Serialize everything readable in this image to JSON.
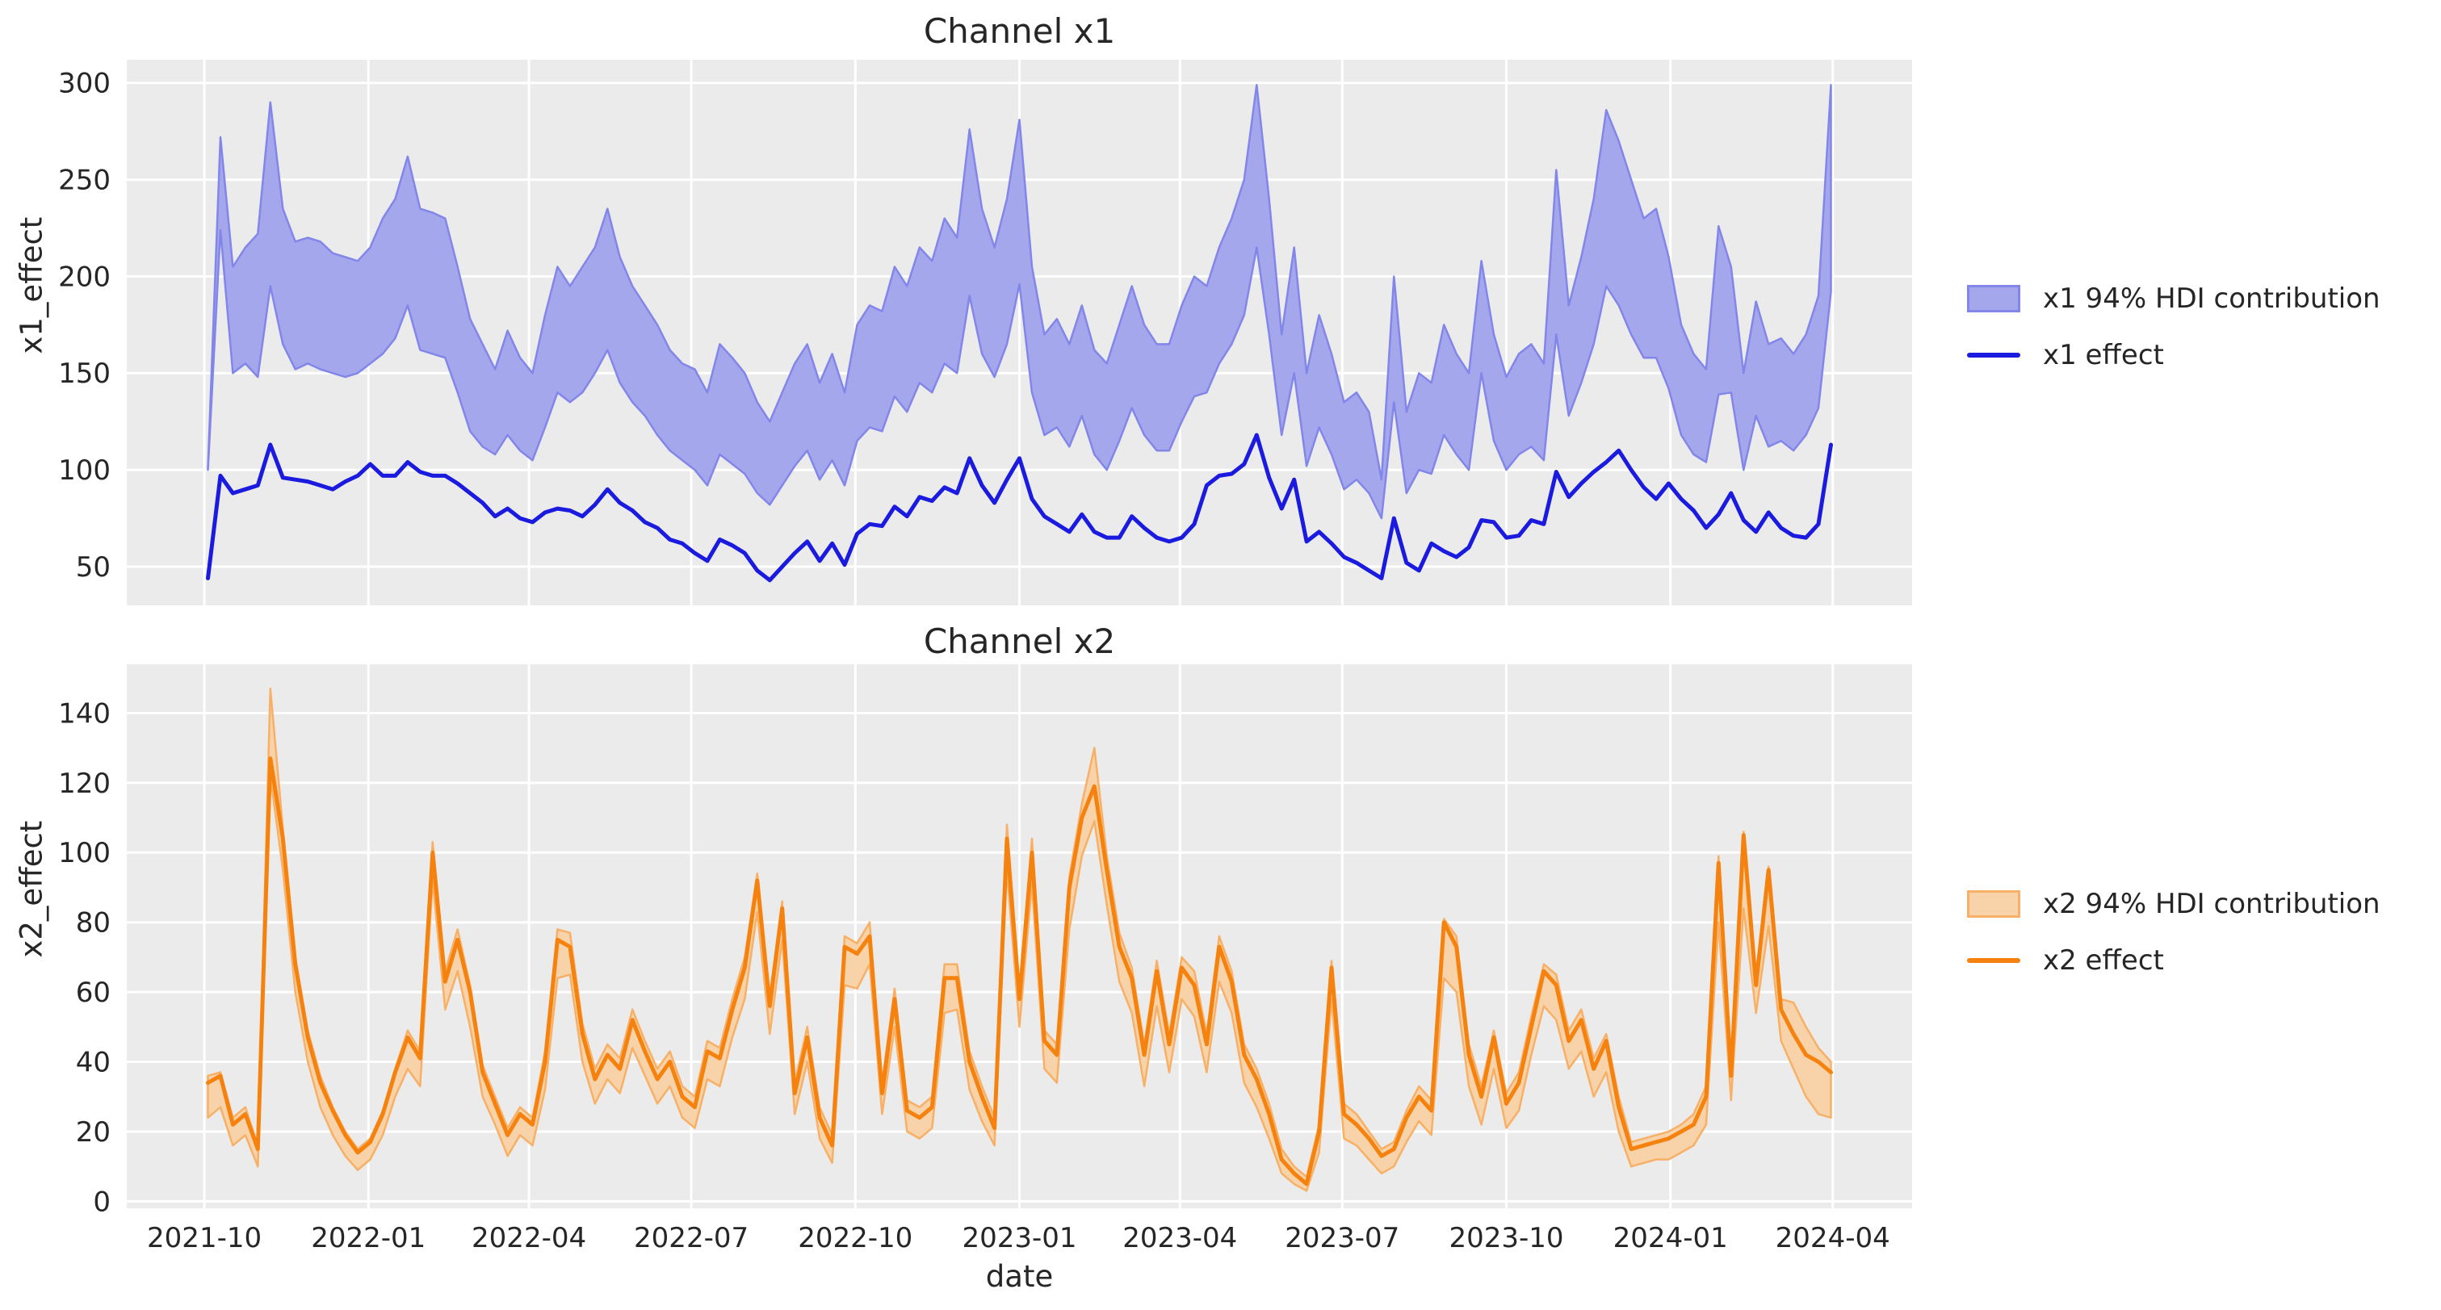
{
  "figure": {
    "background": "#ffffff",
    "axes_background": "#ebebeb",
    "grid_color": "#ffffff",
    "text_color": "#262626"
  },
  "x_axis": {
    "label": "date",
    "tick_dates": [
      "2021-10-01",
      "2022-01-01",
      "2022-04-01",
      "2022-07-01",
      "2022-10-01",
      "2023-01-01",
      "2023-04-01",
      "2023-07-01",
      "2023-10-01",
      "2024-01-01",
      "2024-04-01"
    ],
    "tick_labels": [
      "2021-10",
      "2022-01",
      "2022-04",
      "2022-07",
      "2022-10",
      "2023-01",
      "2023-04",
      "2023-07",
      "2023-10",
      "2024-01",
      "2024-04"
    ]
  },
  "chart_data": [
    {
      "type": "area",
      "title": "Channel x1",
      "ylabel": "x1_effect",
      "xlabel": "",
      "ylim": [
        30,
        312
      ],
      "yticks": [
        50,
        100,
        150,
        200,
        250,
        300
      ],
      "grid": true,
      "legend_position": "center-right-outside",
      "x_start": "2021-10-03",
      "x_step_days": 7,
      "n_points": 131,
      "series": [
        {
          "name": "x1 94% HDI contribution",
          "kind": "band",
          "fill_color": "#a5a7ec",
          "edge_color": "#8286e9",
          "lower": [
            100,
            224,
            150,
            155,
            148,
            195,
            165,
            152,
            155,
            152,
            150,
            148,
            150,
            155,
            160,
            168,
            185,
            162,
            160,
            158,
            140,
            120,
            112,
            108,
            118,
            110,
            105,
            122,
            140,
            135,
            140,
            150,
            162,
            145,
            135,
            128,
            118,
            110,
            105,
            100,
            92,
            108,
            103,
            98,
            88,
            82,
            92,
            102,
            110,
            95,
            105,
            92,
            115,
            122,
            120,
            138,
            130,
            145,
            140,
            155,
            150,
            190,
            160,
            148,
            165,
            196,
            140,
            118,
            122,
            112,
            128,
            108,
            100,
            115,
            132,
            118,
            110,
            110,
            125,
            138,
            140,
            155,
            165,
            180,
            215,
            170,
            118,
            150,
            102,
            122,
            108,
            90,
            95,
            88,
            75,
            135,
            88,
            100,
            98,
            118,
            108,
            100,
            150,
            115,
            100,
            108,
            112,
            105,
            170,
            128,
            145,
            165,
            195,
            185,
            170,
            158,
            158,
            142,
            118,
            108,
            104,
            139,
            140,
            100,
            128,
            112,
            115,
            110,
            118,
            132,
            192
          ],
          "upper": [
            101,
            272,
            205,
            215,
            222,
            290,
            235,
            218,
            220,
            218,
            212,
            210,
            208,
            215,
            230,
            240,
            262,
            235,
            233,
            230,
            205,
            178,
            165,
            152,
            172,
            158,
            150,
            180,
            205,
            195,
            205,
            215,
            235,
            210,
            195,
            185,
            175,
            162,
            155,
            152,
            140,
            165,
            158,
            150,
            135,
            125,
            140,
            155,
            165,
            145,
            160,
            140,
            175,
            185,
            182,
            205,
            195,
            215,
            208,
            230,
            220,
            276,
            235,
            215,
            240,
            281,
            205,
            170,
            178,
            165,
            185,
            162,
            155,
            175,
            195,
            175,
            165,
            165,
            185,
            200,
            195,
            215,
            230,
            250,
            299,
            240,
            170,
            215,
            150,
            180,
            160,
            135,
            140,
            130,
            95,
            200,
            130,
            150,
            145,
            175,
            160,
            150,
            208,
            170,
            148,
            160,
            165,
            155,
            255,
            185,
            210,
            240,
            286,
            270,
            250,
            230,
            235,
            210,
            175,
            160,
            152,
            226,
            205,
            150,
            187,
            165,
            168,
            160,
            170,
            190,
            299
          ]
        },
        {
          "name": "x1 effect",
          "kind": "line",
          "color": "#1b1be0",
          "values": [
            44,
            97,
            88,
            90,
            92,
            113,
            96,
            95,
            94,
            92,
            90,
            94,
            97,
            103,
            97,
            97,
            104,
            99,
            97,
            97,
            93,
            88,
            83,
            76,
            80,
            75,
            73,
            78,
            80,
            79,
            76,
            82,
            90,
            83,
            79,
            73,
            70,
            64,
            62,
            57,
            53,
            64,
            61,
            57,
            48,
            43,
            50,
            57,
            63,
            53,
            62,
            51,
            67,
            72,
            71,
            81,
            76,
            86,
            84,
            91,
            88,
            106,
            92,
            83,
            95,
            106,
            85,
            76,
            72,
            68,
            77,
            68,
            65,
            65,
            76,
            70,
            65,
            63,
            65,
            72,
            92,
            97,
            98,
            103,
            118,
            96,
            80,
            95,
            63,
            68,
            62,
            55,
            52,
            48,
            44,
            75,
            52,
            48,
            62,
            58,
            55,
            60,
            74,
            73,
            65,
            66,
            74,
            72,
            99,
            86,
            93,
            99,
            104,
            110,
            100,
            91,
            85,
            93,
            85,
            79,
            70,
            77,
            88,
            74,
            68,
            78,
            70,
            66,
            65,
            72,
            113
          ]
        }
      ]
    },
    {
      "type": "area",
      "title": "Channel x2",
      "ylabel": "x2_effect",
      "xlabel": "date",
      "ylim": [
        -2,
        154
      ],
      "yticks": [
        0,
        20,
        40,
        60,
        80,
        100,
        120,
        140
      ],
      "grid": true,
      "legend_position": "center-right-outside",
      "x_start": "2021-10-03",
      "x_step_days": 7,
      "n_points": 131,
      "series": [
        {
          "name": "x2 94% HDI contribution",
          "kind": "band",
          "fill_color": "#f8d2a8",
          "edge_color": "#f7b066",
          "lower": [
            24,
            27,
            16,
            19,
            10,
            122,
            95,
            60,
            40,
            27,
            19,
            13,
            9,
            12,
            19,
            30,
            38,
            33,
            92,
            55,
            66,
            50,
            30,
            22,
            13,
            19,
            16,
            32,
            64,
            65,
            40,
            28,
            35,
            31,
            44,
            36,
            28,
            33,
            24,
            21,
            35,
            33,
            47,
            58,
            83,
            48,
            75,
            25,
            40,
            18,
            11,
            62,
            61,
            68,
            25,
            50,
            20,
            18,
            21,
            54,
            55,
            32,
            23,
            16,
            95,
            50,
            91,
            38,
            34,
            78,
            99,
            109,
            85,
            63,
            54,
            33,
            56,
            37,
            58,
            53,
            37,
            63,
            54,
            34,
            27,
            18,
            8,
            5,
            3,
            14,
            58,
            18,
            16,
            12,
            8,
            10,
            17,
            23,
            19,
            64,
            60,
            33,
            22,
            38,
            21,
            26,
            42,
            56,
            52,
            38,
            43,
            30,
            37,
            20,
            10,
            11,
            12,
            12,
            14,
            16,
            22,
            80,
            29,
            84,
            54,
            79,
            46,
            38,
            30,
            25,
            24
          ],
          "upper": [
            36,
            37,
            24,
            27,
            16,
            147,
            107,
            70,
            49,
            36,
            27,
            20,
            15,
            18,
            26,
            38,
            49,
            43,
            103,
            66,
            78,
            62,
            39,
            30,
            21,
            27,
            24,
            43,
            78,
            77,
            51,
            38,
            45,
            41,
            55,
            46,
            38,
            43,
            33,
            30,
            46,
            44,
            58,
            70,
            94,
            59,
            86,
            34,
            50,
            27,
            19,
            76,
            74,
            80,
            34,
            61,
            29,
            27,
            30,
            68,
            68,
            43,
            33,
            24,
            108,
            61,
            104,
            49,
            45,
            93,
            114,
            130,
            99,
            77,
            67,
            45,
            69,
            48,
            70,
            66,
            48,
            76,
            66,
            45,
            38,
            28,
            15,
            10,
            7,
            22,
            69,
            28,
            25,
            20,
            15,
            17,
            26,
            33,
            29,
            81,
            76,
            45,
            33,
            49,
            31,
            37,
            53,
            68,
            65,
            49,
            55,
            41,
            48,
            30,
            17,
            18,
            19,
            20,
            22,
            25,
            33,
            99,
            38,
            106,
            65,
            96,
            58,
            57,
            50,
            44,
            40
          ]
        },
        {
          "name": "x2 effect",
          "kind": "line",
          "color": "#f5820e",
          "values": [
            34,
            36,
            22,
            25,
            15,
            127,
            104,
            68,
            47,
            34,
            26,
            19,
            14,
            17,
            25,
            37,
            47,
            41,
            100,
            63,
            75,
            60,
            37,
            28,
            19,
            25,
            22,
            40,
            75,
            73,
            48,
            35,
            42,
            38,
            52,
            43,
            35,
            40,
            30,
            27,
            43,
            41,
            55,
            67,
            92,
            56,
            84,
            31,
            47,
            24,
            16,
            73,
            71,
            76,
            31,
            58,
            26,
            24,
            27,
            64,
            64,
            40,
            30,
            21,
            104,
            58,
            100,
            46,
            42,
            90,
            110,
            119,
            95,
            73,
            64,
            42,
            66,
            45,
            67,
            62,
            45,
            73,
            63,
            42,
            35,
            25,
            12,
            8,
            5,
            20,
            67,
            25,
            22,
            18,
            13,
            15,
            24,
            30,
            26,
            80,
            73,
            42,
            30,
            47,
            28,
            34,
            50,
            66,
            62,
            46,
            52,
            38,
            46,
            27,
            15,
            16,
            17,
            18,
            20,
            22,
            30,
            97,
            36,
            105,
            62,
            95,
            55,
            48,
            42,
            40,
            37
          ]
        }
      ]
    }
  ]
}
